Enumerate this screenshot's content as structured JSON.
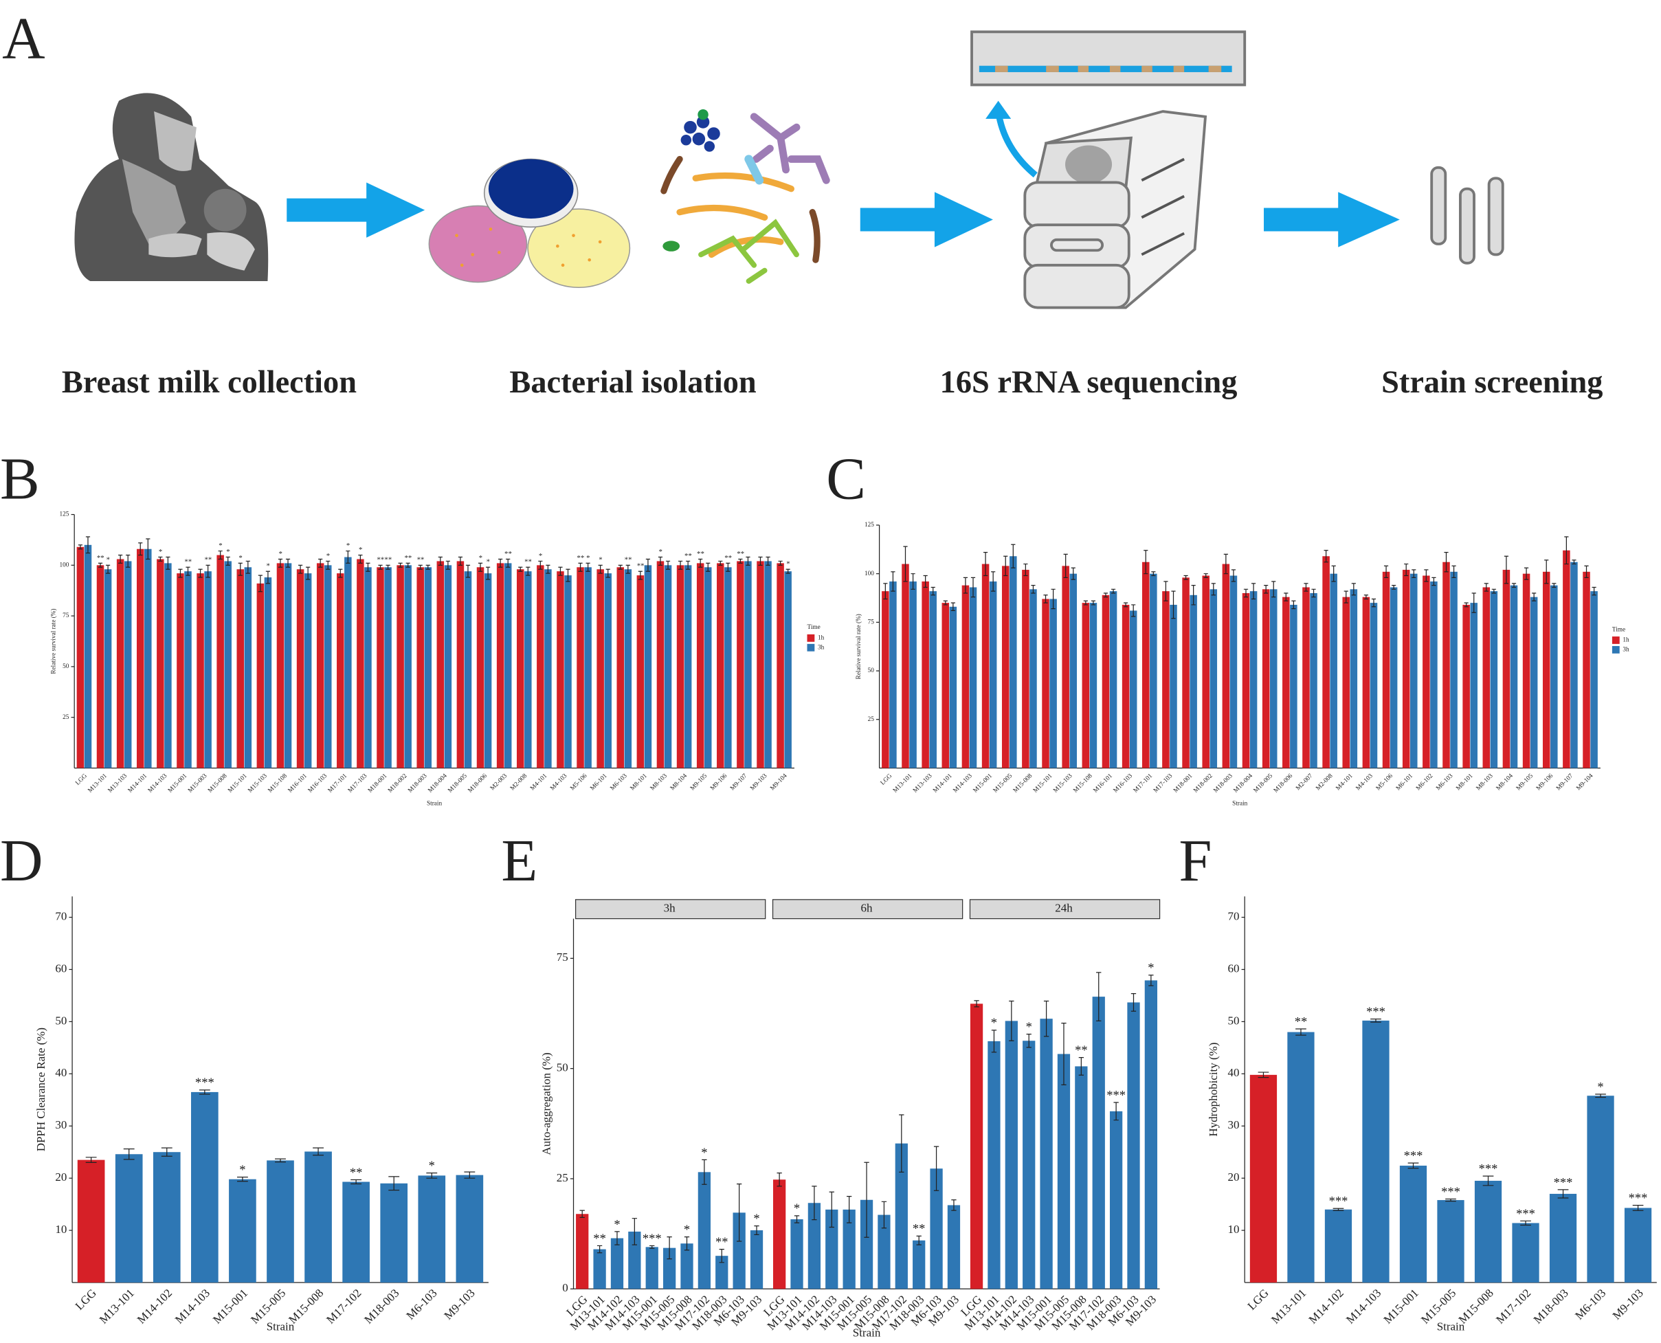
{
  "workflow": {
    "label": "A",
    "steps": [
      "Breast milk collection",
      "Bacterial isolation",
      "16S rRNA sequencing",
      "Strain screening"
    ]
  },
  "chart_data": [
    {
      "label": "B",
      "type": "bar",
      "categories": [
        "LGG",
        "M13-101",
        "M13-103",
        "M14-101",
        "M14-103",
        "M15-001",
        "M15-003",
        "M15-008",
        "M15-101",
        "M15-103",
        "M15-108",
        "M16-101",
        "M16-103",
        "M17-101",
        "M17-103",
        "M18-001",
        "M18-002",
        "M18-003",
        "M18-004",
        "M18-005",
        "M18-006",
        "M2-003",
        "M2-008",
        "M4-101",
        "M4-103",
        "M5-106",
        "M6-101",
        "M6-103",
        "M8-101",
        "M8-103",
        "M8-104",
        "M9-105",
        "M9-106",
        "M9-107",
        "M9-103",
        "M9-104"
      ],
      "series": [
        {
          "name": "1h",
          "color": "#d62027",
          "values": [
            109,
            100,
            103,
            108,
            103,
            96,
            96,
            105,
            98,
            91,
            101,
            98,
            101,
            96,
            103,
            99,
            100,
            99,
            102,
            102,
            99,
            101,
            98,
            100,
            97,
            99,
            98,
            99,
            95,
            102,
            100,
            101,
            101,
            102,
            102,
            101
          ],
          "errors": [
            1,
            1,
            2,
            3,
            1,
            2,
            2,
            2,
            3,
            4,
            2,
            2,
            2,
            2,
            2,
            1,
            1,
            1,
            2,
            2,
            2,
            2,
            1,
            2,
            2,
            2,
            2,
            1,
            2,
            2,
            2,
            2,
            1,
            1,
            2,
            1
          ],
          "labels": [
            null,
            "**",
            null,
            null,
            "*",
            null,
            null,
            "*",
            "*",
            null,
            "*",
            null,
            null,
            null,
            "*",
            "**",
            null,
            "**",
            null,
            null,
            "*",
            null,
            null,
            "*",
            null,
            "**",
            "*",
            null,
            "**",
            "*",
            null,
            "**",
            null,
            "**",
            null,
            null
          ]
        },
        {
          "name": "3h",
          "color": "#2e77b4",
          "values": [
            110,
            98,
            102,
            108,
            101,
            97,
            97,
            102,
            99,
            94,
            101,
            96,
            100,
            104,
            99,
            99,
            100,
            99,
            100,
            97,
            96,
            101,
            97,
            98,
            95,
            99,
            96,
            98,
            100,
            100,
            100,
            99,
            99,
            102,
            102,
            97
          ],
          "errors": [
            4,
            2,
            3,
            5,
            3,
            2,
            3,
            2,
            3,
            3,
            2,
            3,
            2,
            3,
            2,
            1,
            1,
            1,
            2,
            3,
            3,
            2,
            2,
            2,
            3,
            2,
            2,
            2,
            3,
            2,
            2,
            2,
            2,
            2,
            2,
            1
          ],
          "labels": [
            null,
            "*",
            null,
            null,
            null,
            "**",
            "**",
            "*",
            null,
            "*",
            null,
            null,
            "*",
            "*",
            null,
            "**",
            "**",
            null,
            null,
            null,
            "*",
            "**",
            "**",
            null,
            null,
            "*",
            null,
            "**",
            null,
            null,
            "**",
            null,
            "**",
            null,
            null,
            "*"
          ]
        }
      ],
      "ylim": [
        0,
        125
      ],
      "yticks": [
        25,
        50,
        75,
        100,
        125
      ],
      "ylabel": "Relative survival rate (%)",
      "xlabel": "Strain",
      "legend_title": "Time",
      "legend": "right"
    },
    {
      "label": "C",
      "type": "bar",
      "categories": [
        "LGG",
        "M13-101",
        "M13-103",
        "M14-101",
        "M14-103",
        "M15-001",
        "M15-005",
        "M15-008",
        "M15-101",
        "M15-103",
        "M15-108",
        "M16-101",
        "M16-103",
        "M17-101",
        "M17-103",
        "M18-001",
        "M18-002",
        "M18-003",
        "M18-004",
        "M18-005",
        "M18-006",
        "M2-007",
        "M2-008",
        "M4-101",
        "M4-103",
        "M5-106",
        "M6-101",
        "M6-102",
        "M6-103",
        "M8-101",
        "M8-103",
        "M8-104",
        "M9-105",
        "M9-106",
        "M9-107",
        "M9-104"
      ],
      "series": [
        {
          "name": "1h",
          "color": "#d62027",
          "values": [
            91,
            105,
            96,
            85,
            94,
            105,
            104,
            102,
            87,
            104,
            85,
            89,
            84,
            106,
            91,
            98,
            99,
            105,
            90,
            92,
            88,
            93,
            109,
            88,
            88,
            101,
            102,
            99,
            106,
            84,
            93,
            102,
            100,
            101,
            112,
            101
          ],
          "errors": [
            4,
            9,
            3,
            1,
            4,
            6,
            5,
            3,
            2,
            6,
            1,
            1,
            1,
            6,
            5,
            1,
            1,
            5,
            2,
            2,
            2,
            2,
            3,
            3,
            1,
            3,
            3,
            3,
            5,
            1,
            2,
            7,
            3,
            6,
            7,
            3
          ]
        },
        {
          "name": "3h",
          "color": "#2e77b4",
          "values": [
            96,
            96,
            91,
            83,
            93,
            96,
            109,
            92,
            87,
            100,
            85,
            91,
            81,
            100,
            84,
            89,
            92,
            99,
            91,
            92,
            84,
            90,
            100,
            92,
            85,
            93,
            100,
            96,
            101,
            85,
            91,
            94,
            88,
            94,
            106,
            91
          ],
          "errors": [
            5,
            4,
            2,
            2,
            5,
            5,
            6,
            2,
            5,
            3,
            1,
            1,
            3,
            1,
            7,
            5,
            3,
            3,
            4,
            4,
            2,
            2,
            4,
            3,
            2,
            1,
            2,
            2,
            3,
            5,
            1,
            1,
            2,
            1,
            1,
            2
          ]
        }
      ],
      "ylim": [
        0,
        125
      ],
      "yticks": [
        25,
        50,
        75,
        100,
        125
      ],
      "ylabel": "Relative survival rate (%)",
      "xlabel": "Strain",
      "legend_title": "Time",
      "legend": "right"
    },
    {
      "label": "D",
      "type": "bar",
      "categories": [
        "LGG",
        "M13-101",
        "M14-102",
        "M14-103",
        "M15-001",
        "M15-005",
        "M15-008",
        "M17-102",
        "M18-003",
        "M6-103",
        "M9-103"
      ],
      "values": [
        23.5,
        24.6,
        25.0,
        36.5,
        19.8,
        23.4,
        25.1,
        19.3,
        19.0,
        20.5,
        20.6
      ],
      "errors": [
        0.5,
        1.0,
        0.8,
        0.4,
        0.4,
        0.3,
        0.7,
        0.4,
        1.3,
        0.5,
        0.6
      ],
      "labels": [
        null,
        null,
        null,
        "***",
        "*",
        null,
        null,
        "**",
        null,
        "*",
        null
      ],
      "colors": [
        "#d62027",
        "#2e77b4",
        "#2e77b4",
        "#2e77b4",
        "#2e77b4",
        "#2e77b4",
        "#2e77b4",
        "#2e77b4",
        "#2e77b4",
        "#2e77b4",
        "#2e77b4"
      ],
      "ylim": [
        0,
        74
      ],
      "yticks": [
        10,
        20,
        30,
        40,
        50,
        60,
        70
      ],
      "ylabel": "DPPH Clearance Rate (%)",
      "xlabel": "Strain"
    },
    {
      "label": "E",
      "type": "bar",
      "categories": [
        "LGG",
        "M13-101",
        "M14-102",
        "M14-103",
        "M15-001",
        "M15-005",
        "M15-008",
        "M17-102",
        "M18-003",
        "M6-103",
        "M9-103"
      ],
      "facets": [
        {
          "name": "3h",
          "values": [
            17.0,
            9.0,
            11.5,
            13.0,
            9.5,
            9.3,
            10.3,
            26.5,
            7.5,
            17.3,
            13.3
          ],
          "errors": [
            0.8,
            0.8,
            1.5,
            3.0,
            0.3,
            2.5,
            1.5,
            2.8,
            1.5,
            6.5,
            1.0
          ],
          "labels": [
            null,
            "**",
            "*",
            null,
            "***",
            null,
            "*",
            "*",
            "**",
            null,
            "*"
          ]
        },
        {
          "name": "6h",
          "values": [
            24.8,
            15.8,
            19.5,
            18.0,
            18.0,
            20.2,
            16.8,
            33.0,
            11.0,
            27.3,
            19.0
          ],
          "errors": [
            1.5,
            0.8,
            3.8,
            4.0,
            3.0,
            8.5,
            3.0,
            6.5,
            1.0,
            5.0,
            1.2
          ],
          "labels": [
            null,
            "*",
            null,
            null,
            null,
            null,
            null,
            null,
            "**",
            null,
            null
          ]
        },
        {
          "name": "24h",
          "values": [
            64.7,
            56.2,
            60.8,
            56.3,
            61.3,
            53.3,
            50.5,
            66.3,
            40.3,
            65.0,
            70.0
          ],
          "errors": [
            0.7,
            2.5,
            4.5,
            1.5,
            4.0,
            7.0,
            2.0,
            5.5,
            2.0,
            2.0,
            1.2
          ],
          "labels": [
            null,
            "*",
            null,
            "*",
            null,
            null,
            "**",
            null,
            "***",
            null,
            "*"
          ]
        }
      ],
      "colors": [
        "#d62027",
        "#2e77b4",
        "#2e77b4",
        "#2e77b4",
        "#2e77b4",
        "#2e77b4",
        "#2e77b4",
        "#2e77b4",
        "#2e77b4",
        "#2e77b4",
        "#2e77b4"
      ],
      "ylim": [
        0,
        84
      ],
      "yticks": [
        0,
        25,
        50,
        75
      ],
      "ylabel": "Auto-aggregation (%)",
      "xlabel": "Strain"
    },
    {
      "label": "F",
      "type": "bar",
      "categories": [
        "LGG",
        "M13-101",
        "M14-102",
        "M14-103",
        "M15-001",
        "M15-005",
        "M15-008",
        "M17-102",
        "M18-003",
        "M6-103",
        "M9-103"
      ],
      "values": [
        39.8,
        48.0,
        14.0,
        50.2,
        22.4,
        15.8,
        19.5,
        11.4,
        17.0,
        35.8,
        14.3
      ],
      "errors": [
        0.5,
        0.6,
        0.2,
        0.3,
        0.5,
        0.2,
        0.9,
        0.4,
        0.8,
        0.3,
        0.5
      ],
      "labels": [
        null,
        "**",
        "***",
        "***",
        "***",
        "***",
        "***",
        "***",
        "***",
        "*",
        "***"
      ],
      "colors": [
        "#d62027",
        "#2e77b4",
        "#2e77b4",
        "#2e77b4",
        "#2e77b4",
        "#2e77b4",
        "#2e77b4",
        "#2e77b4",
        "#2e77b4",
        "#2e77b4",
        "#2e77b4"
      ],
      "ylim": [
        0,
        74
      ],
      "yticks": [
        10,
        20,
        30,
        40,
        50,
        60,
        70
      ],
      "ylabel": "Hydrophobicity (%)",
      "xlabel": "Strain"
    }
  ]
}
